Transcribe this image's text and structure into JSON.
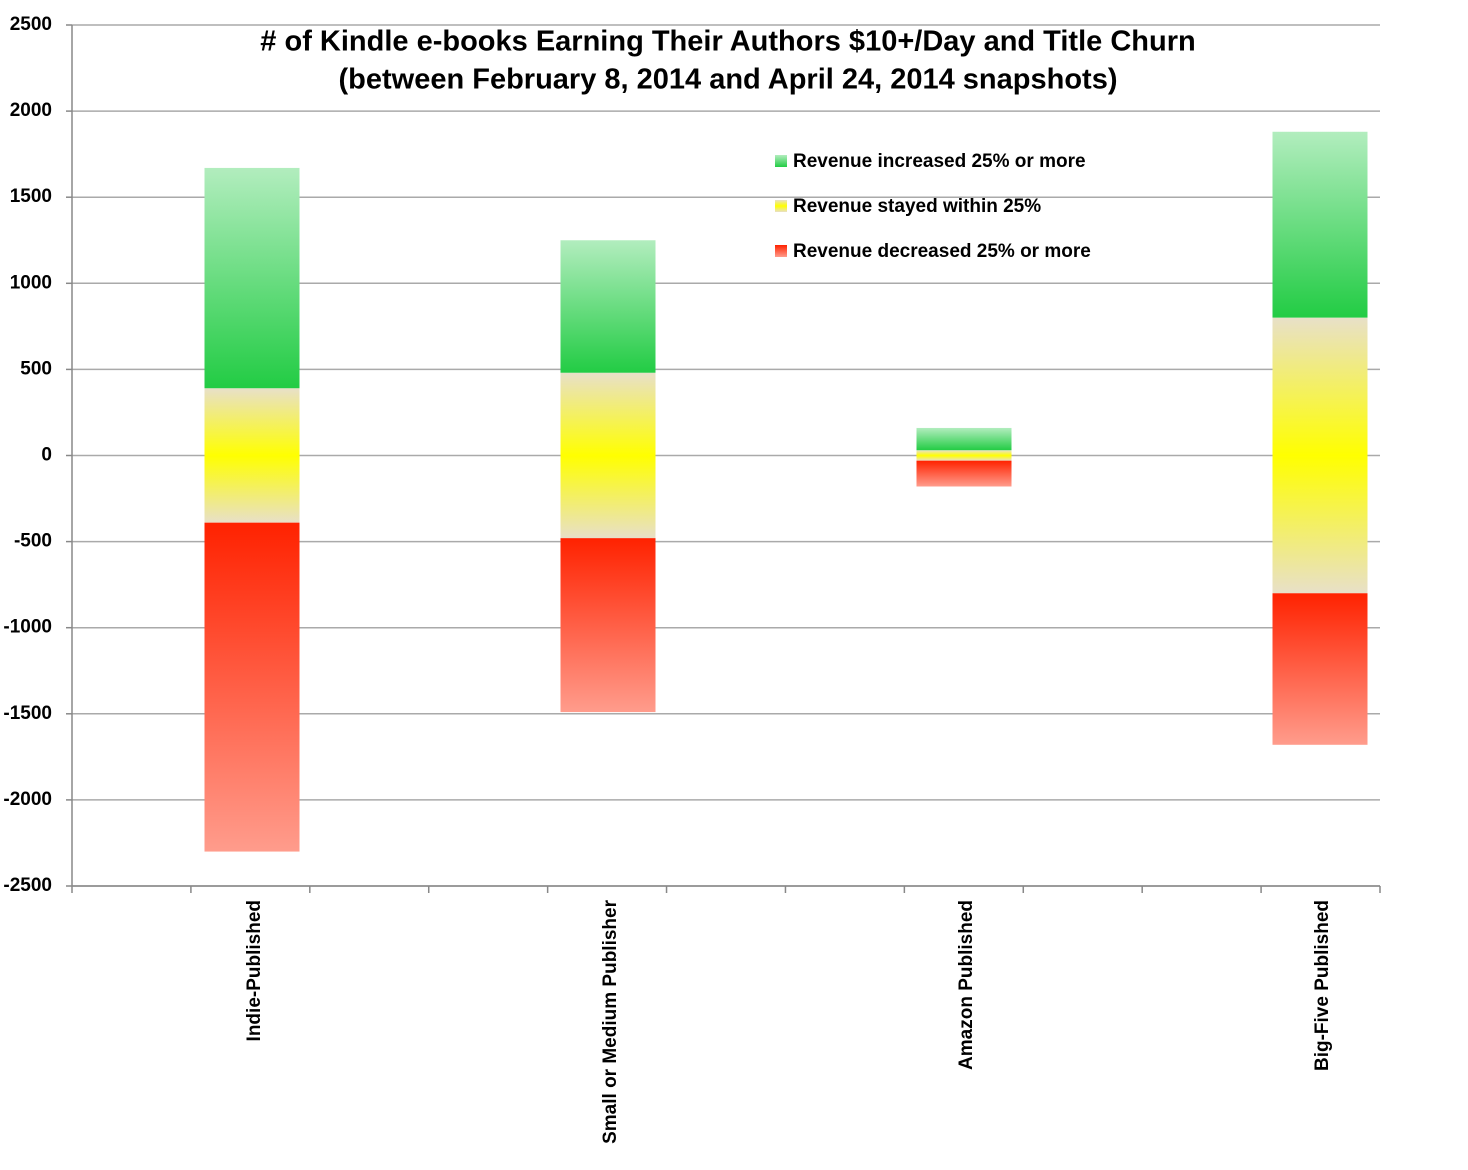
{
  "chart_data": {
    "type": "bar",
    "title": "# of Kindle e-books Earning Their Authors $10+/Day and Title Churn",
    "subtitle": "(between February 8, 2014 and April 24, 2014 snapshots)",
    "categories": [
      "Indie-Published",
      "Small or Medium Publisher",
      "Amazon Published",
      "Big-Five Published"
    ],
    "series": [
      {
        "name": "Revenue increased 25% or more",
        "color": "#22cc44",
        "values": [
          1280,
          770,
          130,
          1080
        ]
      },
      {
        "name": "Revenue stayed within 25%",
        "color": "#ffff00",
        "values": [
          780,
          960,
          60,
          1600
        ]
      },
      {
        "name": "Revenue decreased 25% or more",
        "color": "#ff2200",
        "values": [
          1910,
          1010,
          150,
          880
        ]
      }
    ],
    "ylim": [
      -2500,
      2500
    ],
    "yticks": [
      2500,
      2000,
      1500,
      1000,
      500,
      0,
      -500,
      -1000,
      -1500,
      -2000,
      -2500
    ],
    "grid": true
  }
}
